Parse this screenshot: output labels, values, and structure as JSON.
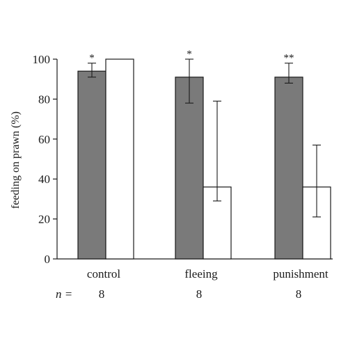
{
  "chart_data": {
    "type": "bar",
    "title": "",
    "xlabel": "",
    "ylabel": "feeding on prawn (%)",
    "ylim": [
      0,
      100
    ],
    "yticks": [
      0,
      20,
      40,
      60,
      80,
      100
    ],
    "grid": false,
    "legend": "none",
    "categories": [
      "control",
      "fleeing",
      "punishment"
    ],
    "series": [
      {
        "color": "#7a7a7a",
        "values": [
          94,
          91,
          91
        ],
        "err_low": [
          91,
          78,
          88
        ],
        "err_high": [
          98,
          100,
          98
        ]
      },
      {
        "color": "#ffffff",
        "values": [
          100,
          36,
          36
        ],
        "err_low": [
          100,
          29,
          21
        ],
        "err_high": [
          100,
          79,
          57
        ]
      }
    ],
    "significance": [
      "*",
      "*",
      "**"
    ],
    "n_label": "n =",
    "n_values": [
      "8",
      "8",
      "8"
    ]
  }
}
